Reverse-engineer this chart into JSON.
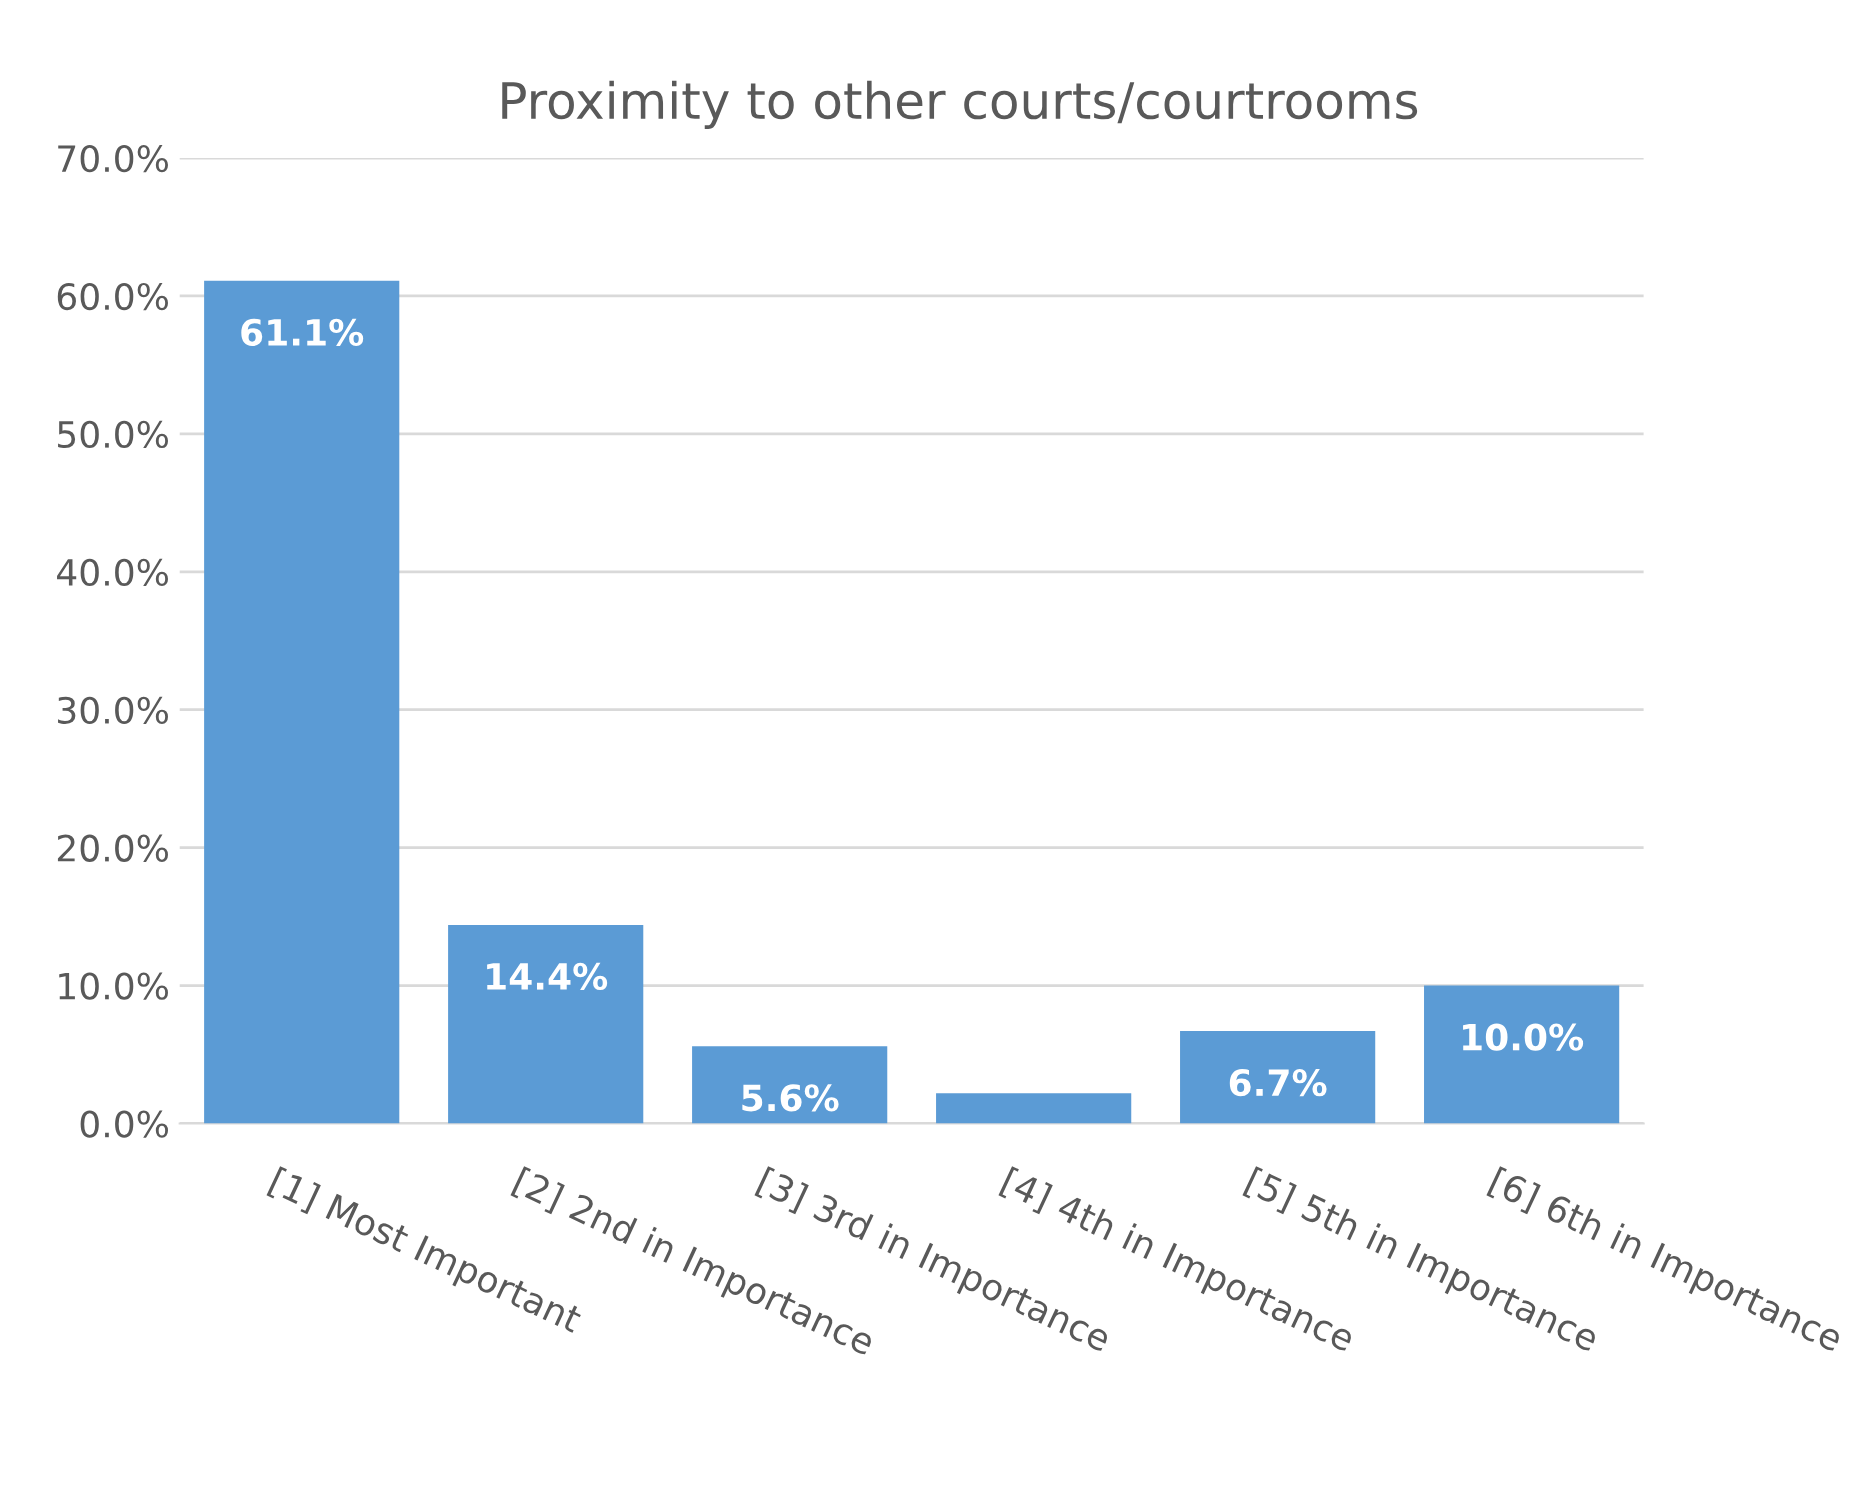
{
  "chart_data": {
    "type": "bar",
    "title": "Proximity to other courts/courtrooms",
    "categories": [
      "[1] Most Important",
      "[2] 2nd in Importance",
      "[3] 3rd in Importance",
      "[4] 4th in Importance",
      "[5] 5th in Importance",
      "[6] 6th in Importance"
    ],
    "values": [
      61.1,
      14.4,
      5.6,
      2.2,
      6.7,
      10.0
    ],
    "value_labels": [
      "61.1%",
      "14.4%",
      "5.6%",
      null,
      "6.7%",
      "10.0%"
    ],
    "color": "#5b9bd5",
    "ylim": [
      0,
      70
    ],
    "yticks": [
      {
        "value": 0,
        "label": "0.0%"
      },
      {
        "value": 10,
        "label": "10.0%"
      },
      {
        "value": 20,
        "label": "20.0%"
      },
      {
        "value": 30,
        "label": "30.0%"
      },
      {
        "value": 40,
        "label": "40.0%"
      },
      {
        "value": 50,
        "label": "50.0%"
      },
      {
        "value": 60,
        "label": "60.0%"
      },
      {
        "value": 70,
        "label": "70.0%"
      }
    ],
    "grid": "y"
  }
}
